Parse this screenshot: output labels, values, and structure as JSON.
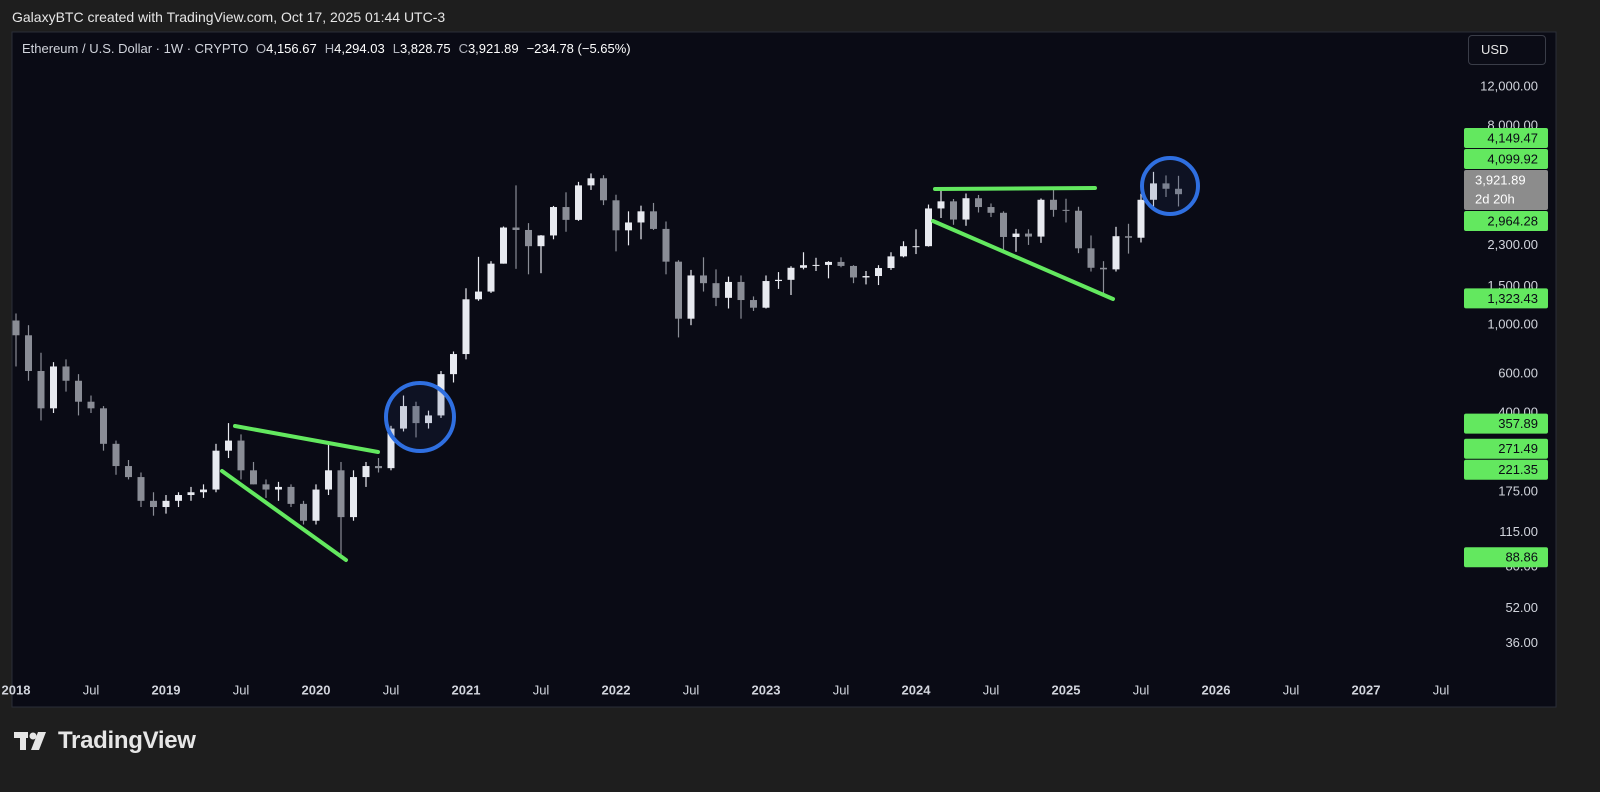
{
  "credit": "GalaxyBTC created with TradingView.com, Oct 17, 2025 01:44 UTC-3",
  "brand": "TradingView",
  "chart_data": {
    "type": "candlestick",
    "title": "Ethereum / U.S. Dollar · 1W · CRYPTO",
    "legend": [
      {
        "key": "O",
        "text": "4,156.67"
      },
      {
        "key": "H",
        "text": "4,294.03"
      },
      {
        "key": "L",
        "text": "3,828.75"
      },
      {
        "key": "C",
        "text": "3,921.89"
      }
    ],
    "change": "−234.78 (−5.65%)",
    "currency": "USD",
    "x": [
      "2018-01",
      "2018-02",
      "2018-03",
      "2018-04",
      "2018-05",
      "2018-06",
      "2018-07",
      "2018-08",
      "2018-09",
      "2018-10",
      "2018-11",
      "2018-12",
      "2019-01",
      "2019-02",
      "2019-03",
      "2019-04",
      "2019-05",
      "2019-06",
      "2019-07",
      "2019-08",
      "2019-09",
      "2019-10",
      "2019-11",
      "2019-12",
      "2020-01",
      "2020-02",
      "2020-03",
      "2020-04",
      "2020-05",
      "2020-06",
      "2020-07",
      "2020-08",
      "2020-09",
      "2020-10",
      "2020-11",
      "2020-12",
      "2021-01",
      "2021-02",
      "2021-03",
      "2021-04",
      "2021-05",
      "2021-06",
      "2021-07",
      "2021-08",
      "2021-09",
      "2021-10",
      "2021-11",
      "2021-12",
      "2022-01",
      "2022-02",
      "2022-03",
      "2022-04",
      "2022-05",
      "2022-06",
      "2022-07",
      "2022-08",
      "2022-09",
      "2022-10",
      "2022-11",
      "2022-12",
      "2023-01",
      "2023-02",
      "2023-03",
      "2023-04",
      "2023-05",
      "2023-06",
      "2023-07",
      "2023-08",
      "2023-09",
      "2023-10",
      "2023-11",
      "2023-12",
      "2024-01",
      "2024-02",
      "2024-03",
      "2024-04",
      "2024-05",
      "2024-06",
      "2024-07",
      "2024-08",
      "2024-09",
      "2024-10",
      "2024-11",
      "2024-12",
      "2025-01",
      "2025-02",
      "2025-03",
      "2025-04",
      "2025-05",
      "2025-06",
      "2025-07",
      "2025-08",
      "2025-09",
      "2025-10"
    ],
    "open": [
      1050,
      900,
      620,
      420,
      650,
      560,
      450,
      420,
      290,
      230,
      205,
      160,
      150,
      160,
      170,
      175,
      180,
      270,
      300,
      220,
      190,
      180,
      185,
      155,
      130,
      180,
      220,
      135,
      205,
      230,
      225,
      340,
      430,
      360,
      390,
      600,
      740,
      1310,
      1420,
      1900,
      2770,
      2700,
      2280,
      2550,
      3430,
      3000,
      4300,
      4630,
      3680,
      2690,
      2920,
      3280,
      2730,
      1940,
      1070,
      1680,
      1550,
      1330,
      1570,
      1300,
      1200,
      1585,
      1605,
      1820,
      1870,
      1875,
      1935,
      1855,
      1645,
      1670,
      1815,
      2050,
      2280,
      2280,
      3380,
      3640,
      3010,
      3760,
      3430,
      3230,
      2510,
      2600,
      2520,
      3700,
      3330,
      3300,
      2230,
      1820,
      1790,
      2530,
      2490,
      3700,
      4390,
      4150
    ],
    "high": [
      1130,
      1000,
      750,
      680,
      700,
      600,
      480,
      430,
      300,
      245,
      215,
      175,
      170,
      175,
      185,
      190,
      290,
      360,
      320,
      240,
      200,
      195,
      190,
      160,
      190,
      290,
      240,
      220,
      240,
      250,
      350,
      480,
      450,
      410,
      620,
      760,
      1470,
      2040,
      1950,
      2800,
      4300,
      2900,
      2560,
      3470,
      4000,
      4460,
      4870,
      4780,
      3900,
      3280,
      3480,
      3580,
      2950,
      1970,
      1780,
      2030,
      1790,
      1660,
      1680,
      1350,
      1680,
      1740,
      1850,
      2140,
      2020,
      1950,
      2030,
      1870,
      1760,
      1870,
      2140,
      2400,
      2720,
      3520,
      4090,
      3730,
      3950,
      3890,
      3560,
      3280,
      2730,
      2720,
      3750,
      4110,
      3740,
      3440,
      2550,
      1950,
      2790,
      2880,
      3940,
      4950,
      4770,
      4750
    ],
    "low": [
      650,
      560,
      370,
      400,
      500,
      390,
      400,
      270,
      210,
      200,
      150,
      137,
      140,
      150,
      160,
      165,
      175,
      250,
      200,
      190,
      165,
      160,
      150,
      125,
      125,
      170,
      89,
      130,
      185,
      215,
      220,
      330,
      310,
      340,
      380,
      550,
      700,
      1290,
      1400,
      1900,
      1800,
      1700,
      1720,
      2450,
      2650,
      2970,
      4100,
      3500,
      2160,
      2300,
      2450,
      2700,
      1700,
      880,
      1000,
      1420,
      1220,
      1190,
      1070,
      1160,
      1190,
      1460,
      1370,
      1790,
      1760,
      1630,
      1830,
      1550,
      1530,
      1520,
      1780,
      2030,
      2100,
      2270,
      3060,
      2850,
      2820,
      3240,
      3090,
      2120,
      2150,
      2310,
      2360,
      3100,
      2920,
      2120,
      1750,
      1390,
      1750,
      2110,
      2370,
      3350,
      3810,
      3450
    ],
    "close": [
      900,
      620,
      420,
      650,
      560,
      450,
      420,
      290,
      230,
      205,
      160,
      150,
      160,
      170,
      175,
      180,
      270,
      300,
      220,
      190,
      180,
      185,
      155,
      130,
      180,
      220,
      135,
      205,
      230,
      225,
      340,
      430,
      360,
      390,
      600,
      740,
      1310,
      1420,
      1900,
      2770,
      2700,
      2280,
      2550,
      3430,
      3000,
      4300,
      4630,
      3680,
      2690,
      2920,
      3280,
      2730,
      1940,
      1070,
      1680,
      1550,
      1330,
      1570,
      1300,
      1200,
      1585,
      1605,
      1820,
      1870,
      1875,
      1935,
      1855,
      1645,
      1670,
      1815,
      2050,
      2280,
      2280,
      3380,
      3640,
      3010,
      3760,
      3430,
      3230,
      2510,
      2600,
      2520,
      3700,
      3330,
      3300,
      2230,
      1820,
      1790,
      2530,
      2490,
      3700,
      4390,
      4150,
      3921.89
    ],
    "up_color": "#e8eaf0",
    "down_color": "#8a8d96",
    "log_scale": true,
    "grid": false,
    "ylim": [
      26,
      21300
    ],
    "yticks": [
      {
        "value": 12000,
        "label": "12,000.00"
      },
      {
        "value": 8000,
        "label": "8,000.00"
      },
      {
        "value": 2300,
        "label": "2,300.00"
      },
      {
        "value": 1500,
        "label": "1,500.00"
      },
      {
        "value": 1000,
        "label": "1,000.00"
      },
      {
        "value": 600,
        "label": "600.00"
      },
      {
        "value": 400,
        "label": "400.00"
      },
      {
        "value": 175,
        "label": "175.00"
      },
      {
        "value": 115,
        "label": "115.00"
      },
      {
        "value": 80,
        "label": "80.00"
      },
      {
        "value": 52,
        "label": "52.00"
      },
      {
        "value": 36,
        "label": "36.00"
      }
    ],
    "xlim": [
      "2018-01",
      "2027-09"
    ],
    "xticks": [
      {
        "value": "2018-01",
        "label": "2018"
      },
      {
        "value": "2018-07",
        "label": "Jul"
      },
      {
        "value": "2019-01",
        "label": "2019"
      },
      {
        "value": "2019-07",
        "label": "Jul"
      },
      {
        "value": "2020-01",
        "label": "2020"
      },
      {
        "value": "2020-07",
        "label": "Jul"
      },
      {
        "value": "2021-01",
        "label": "2021"
      },
      {
        "value": "2021-07",
        "label": "Jul"
      },
      {
        "value": "2022-01",
        "label": "2022"
      },
      {
        "value": "2022-07",
        "label": "Jul"
      },
      {
        "value": "2023-01",
        "label": "2023"
      },
      {
        "value": "2023-07",
        "label": "Jul"
      },
      {
        "value": "2024-01",
        "label": "2024"
      },
      {
        "value": "2024-07",
        "label": "Jul"
      },
      {
        "value": "2025-01",
        "label": "2025"
      },
      {
        "value": "2025-07",
        "label": "Jul"
      },
      {
        "value": "2026-01",
        "label": "2026"
      },
      {
        "value": "2026-07",
        "label": "Jul"
      },
      {
        "value": "2027-01",
        "label": "2027"
      },
      {
        "value": "2027-07",
        "label": "Jul"
      }
    ],
    "price_labels": [
      {
        "value": 4149.47,
        "label": "4,149.47"
      },
      {
        "value": 4099.92,
        "label": "4,099.92"
      },
      {
        "value": 2964.28,
        "label": "2,964.28"
      },
      {
        "value": 1323.43,
        "label": "1,323.43"
      },
      {
        "value": 357.89,
        "label": "357.89"
      },
      {
        "value": 271.49,
        "label": "271.49"
      },
      {
        "value": 221.35,
        "label": "221.35"
      },
      {
        "value": 88.86,
        "label": "88.86"
      }
    ],
    "price_label_color": "#63e85f",
    "last_price": {
      "value": 3921.89,
      "label": "3,921.89",
      "countdown": "2d 20h"
    }
  }
}
